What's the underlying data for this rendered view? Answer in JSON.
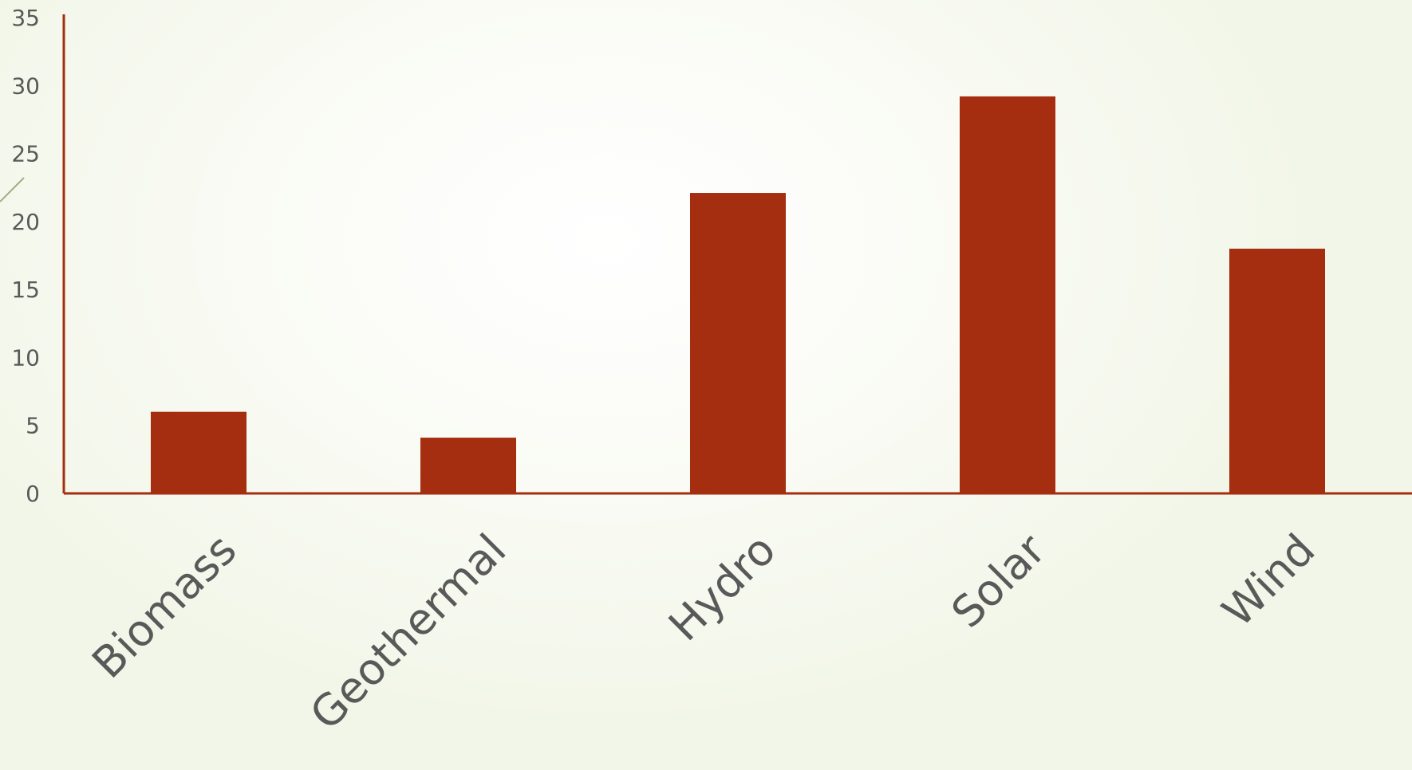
{
  "chart_data": {
    "type": "bar",
    "categories": [
      "Biomass",
      "Geothermal",
      "Hydro",
      "Solar",
      "Wind"
    ],
    "values": [
      6,
      4.1,
      22.1,
      29.2,
      18
    ],
    "ylim": [
      0,
      35
    ],
    "yticks": [
      "0",
      "5",
      "10",
      "15",
      "20",
      "25",
      "30",
      "35"
    ],
    "grid": false,
    "legend": "none",
    "bar_color": "#a52d10",
    "axis_color": "#a52d10",
    "label_color": "#595959"
  }
}
